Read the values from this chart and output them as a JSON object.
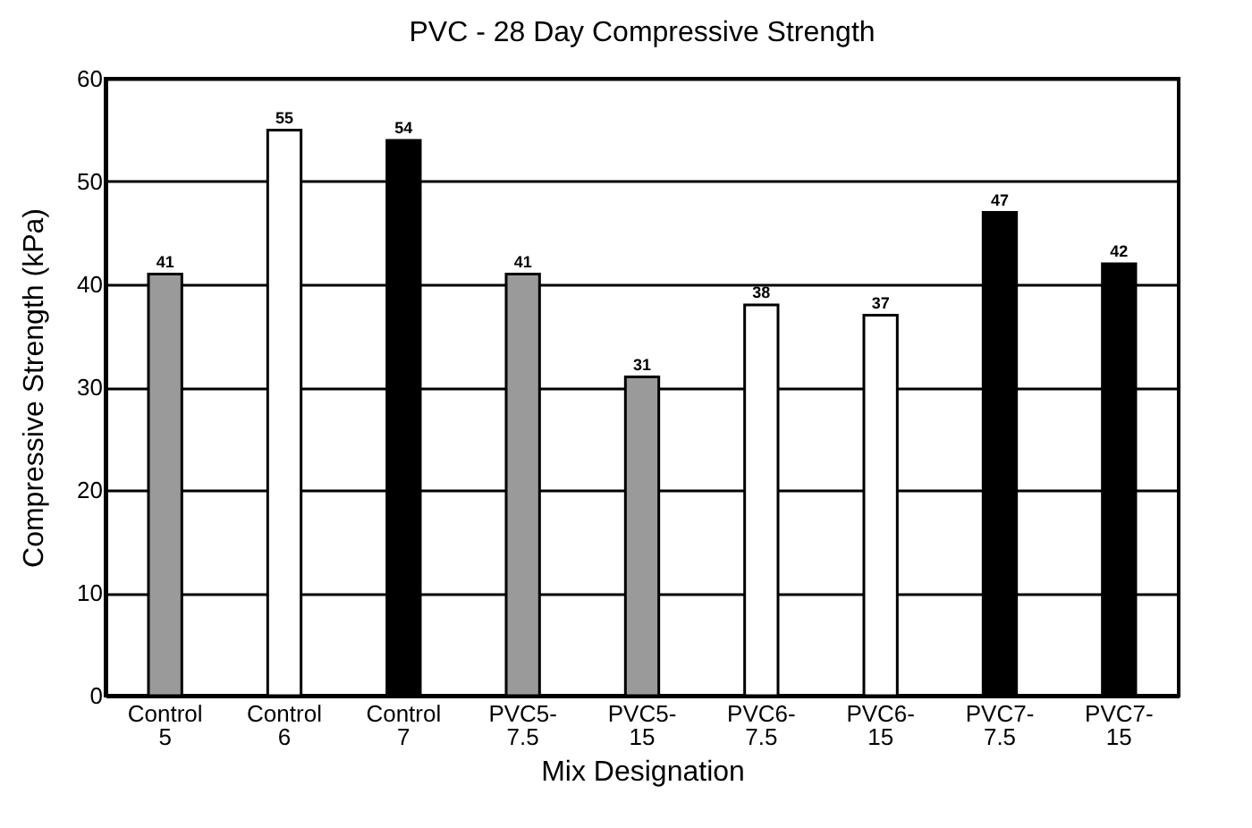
{
  "chart_data": {
    "type": "bar",
    "title": "PVC - 28 Day Compressive Strength",
    "xlabel": "Mix Designation",
    "ylabel": "Compressive Strength (kPa)",
    "categories": [
      "Control\n5",
      "Control\n6",
      "Control\n7",
      "PVC5-\n7.5",
      "PVC5-\n15",
      "PVC6-\n7.5",
      "PVC6-\n15",
      "PVC7-\n7.5",
      "PVC7-\n15"
    ],
    "values": [
      41,
      55,
      54,
      41,
      31,
      38,
      37,
      47,
      42
    ],
    "colors": [
      "#9a9a9a",
      "#ffffff",
      "#000000",
      "#9a9a9a",
      "#9a9a9a",
      "#ffffff",
      "#ffffff",
      "#000000",
      "#000000"
    ],
    "ylim": [
      0,
      60
    ],
    "yticks": [
      0,
      10,
      20,
      30,
      40,
      50,
      60
    ],
    "grid": "y",
    "data_labels": true
  }
}
